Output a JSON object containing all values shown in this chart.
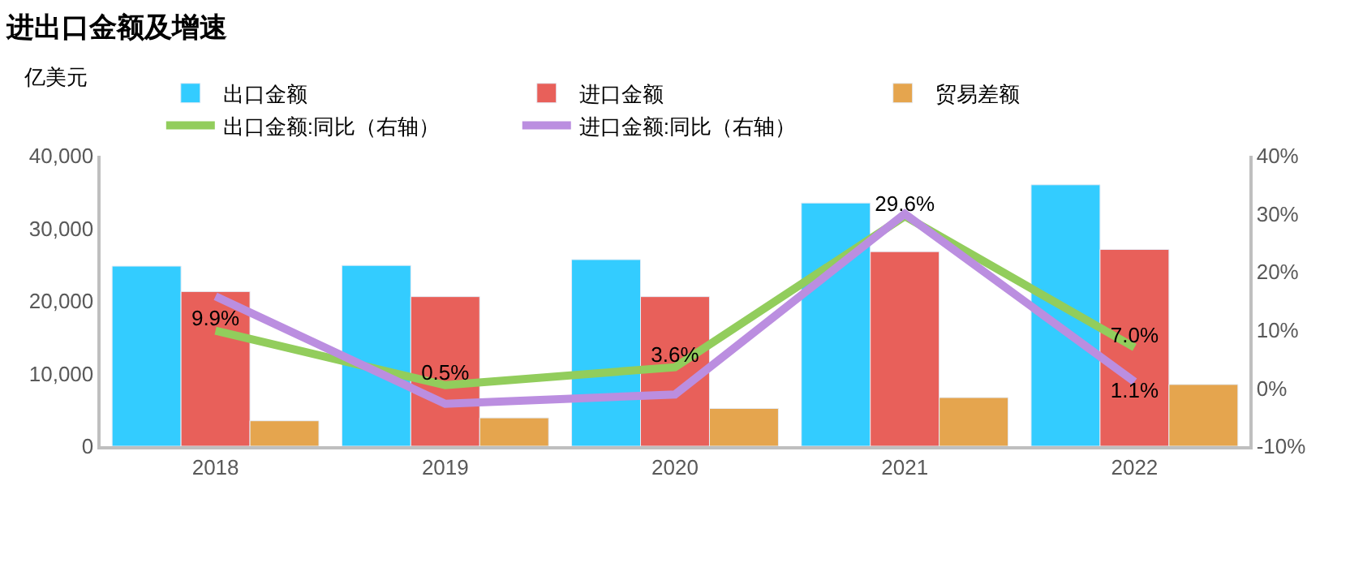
{
  "chart_data": {
    "type": "bar",
    "title": "进出口金额及增速",
    "ylabel": "亿美元",
    "categories": [
      "2018",
      "2019",
      "2020",
      "2021",
      "2022"
    ],
    "series": [
      {
        "name": "出口金额",
        "color": "#33ccff",
        "values": [
          24800,
          24900,
          25700,
          33500,
          36000
        ]
      },
      {
        "name": "进口金额",
        "color": "#e8605a",
        "values": [
          21300,
          20600,
          20600,
          26800,
          27100
        ]
      },
      {
        "name": "贸易差额",
        "color": "#e5a54e",
        "values": [
          3500,
          3900,
          5200,
          6700,
          8500
        ]
      },
      {
        "name": "出口金额:同比（右轴）",
        "type": "line",
        "axis": "y2",
        "color": "#92cd5c",
        "values": [
          9.9,
          0.5,
          3.6,
          29.6,
          7.0
        ],
        "value_labels": [
          "9.9%",
          "0.5%",
          "3.6%",
          "29.6%",
          "7.0%"
        ]
      },
      {
        "name": "进口金额:同比（右轴）",
        "type": "line",
        "axis": "y2",
        "color": "#bb8ee0",
        "values": [
          15.8,
          -2.7,
          -1.1,
          30.0,
          1.1
        ],
        "value_labels": [
          null,
          null,
          null,
          null,
          "1.1%"
        ]
      }
    ],
    "ylim": [
      0,
      40000
    ],
    "yticks": [
      {
        "value": 0,
        "label": "0"
      },
      {
        "value": 10000,
        "label": "10,000"
      },
      {
        "value": 20000,
        "label": "20,000"
      },
      {
        "value": 30000,
        "label": "30,000"
      },
      {
        "value": 40000,
        "label": "40,000"
      }
    ],
    "y2lim": [
      -10,
      40
    ],
    "y2ticks": [
      {
        "value": -10,
        "label": "-10%"
      },
      {
        "value": 0,
        "label": "0%"
      },
      {
        "value": 10,
        "label": "10%"
      },
      {
        "value": 20,
        "label": "20%"
      },
      {
        "value": 30,
        "label": "30%"
      },
      {
        "value": 40,
        "label": "40%"
      }
    ],
    "legend": "top",
    "marker": "none",
    "line_style": "solid"
  }
}
